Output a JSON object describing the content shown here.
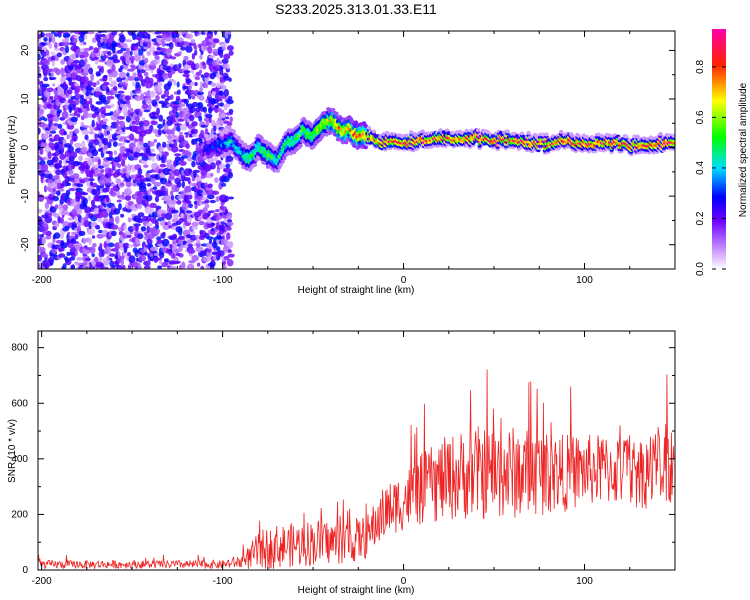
{
  "title": "S233.2025.313.01.33.E11",
  "chart_data": [
    {
      "type": "heatmap",
      "title": "S233.2025.313.01.33.E11",
      "xlabel": "Height of straight line (km)",
      "ylabel": "Frequency (Hz)",
      "xlim": [
        -202,
        150
      ],
      "ylim": [
        -25,
        24
      ],
      "x_ticks": [
        -200,
        -100,
        0,
        100
      ],
      "x_tick_labels": [
        "-200",
        "-100",
        "0",
        "100"
      ],
      "y_ticks": [
        -20,
        -10,
        0,
        10,
        20
      ],
      "y_tick_labels": [
        "-20",
        "-10",
        "0",
        "10",
        "20"
      ],
      "colorbar": {
        "label": "Normalized spectral amplitude",
        "range": [
          0,
          0.95
        ],
        "ticks": [
          0,
          0.2,
          0.4,
          0.6,
          0.8
        ],
        "tick_labels": [
          "0.0",
          "0.2",
          "0.4",
          "0.6",
          "0.8"
        ],
        "colormap": "rainbow: white-purple-blue-cyan-green-yellow-red-magenta"
      },
      "noise_region": {
        "x_range": [
          -202,
          -95
        ],
        "freq_range": [
          -25,
          24
        ],
        "amplitude_range": [
          0.05,
          0.3
        ]
      },
      "ridge": {
        "description": "dominant frequency track (Hz) vs height (km)",
        "x": [
          -110,
          -100,
          -95,
          -90,
          -85,
          -80,
          -75,
          -70,
          -65,
          -60,
          -55,
          -50,
          -45,
          -40,
          -35,
          -30,
          -25,
          -20,
          -15,
          -10,
          -5,
          0,
          10,
          20,
          30,
          40,
          50,
          60,
          70,
          80,
          90,
          100,
          110,
          120,
          130,
          140,
          150
        ],
        "freq": [
          -0.5,
          0.5,
          1.5,
          -1.0,
          -2.5,
          0.5,
          -1.5,
          -3.0,
          0.5,
          1.5,
          3.5,
          2.5,
          4.5,
          5.5,
          4.0,
          3.5,
          2.5,
          2.5,
          1.5,
          1.0,
          1.5,
          1.0,
          1.5,
          2.0,
          1.5,
          2.0,
          1.5,
          1.5,
          1.0,
          1.0,
          1.5,
          1.0,
          1.0,
          1.0,
          0.5,
          0.5,
          1.0
        ],
        "amplitude": [
          0.3,
          0.35,
          0.45,
          0.45,
          0.55,
          0.5,
          0.55,
          0.5,
          0.55,
          0.55,
          0.55,
          0.6,
          0.65,
          0.7,
          0.75,
          0.75,
          0.78,
          0.82,
          0.86,
          0.9,
          0.92,
          0.93,
          0.92,
          0.92,
          0.9,
          0.9,
          0.92,
          0.9,
          0.9,
          0.9,
          0.92,
          0.92,
          0.9,
          0.9,
          0.9,
          0.92,
          0.9
        ]
      }
    },
    {
      "type": "line",
      "xlabel": "Height of straight line (km)",
      "ylabel": "SNR (10 * v/v)",
      "xlim": [
        -202,
        150
      ],
      "ylim": [
        0,
        860
      ],
      "x_ticks": [
        -200,
        -100,
        0,
        100
      ],
      "x_tick_labels": [
        "-200",
        "-100",
        "0",
        "100"
      ],
      "y_ticks": [
        0,
        200,
        400,
        600,
        800
      ],
      "y_tick_labels": [
        "0",
        "200",
        "400",
        "600",
        "800"
      ],
      "series": [
        {
          "name": "SNR",
          "color": "#ee2222",
          "trend_x": [
            -202,
            -150,
            -100,
            -90,
            -85,
            -80,
            -70,
            -60,
            -50,
            -40,
            -30,
            -20,
            -15,
            -10,
            -5,
            0,
            10,
            20,
            30,
            40,
            50,
            60,
            70,
            80,
            90,
            100,
            110,
            120,
            130,
            140,
            150
          ],
          "trend_mean": [
            20,
            20,
            20,
            30,
            45,
            70,
            85,
            90,
            100,
            100,
            100,
            120,
            170,
            210,
            230,
            250,
            290,
            320,
            340,
            350,
            350,
            350,
            350,
            350,
            350,
            360,
            360,
            360,
            350,
            370,
            370
          ],
          "trend_spread": [
            15,
            15,
            15,
            25,
            45,
            70,
            80,
            80,
            85,
            80,
            80,
            80,
            90,
            100,
            100,
            110,
            130,
            150,
            160,
            170,
            170,
            170,
            160,
            150,
            140,
            130,
            130,
            130,
            130,
            150,
            160
          ]
        }
      ]
    }
  ]
}
